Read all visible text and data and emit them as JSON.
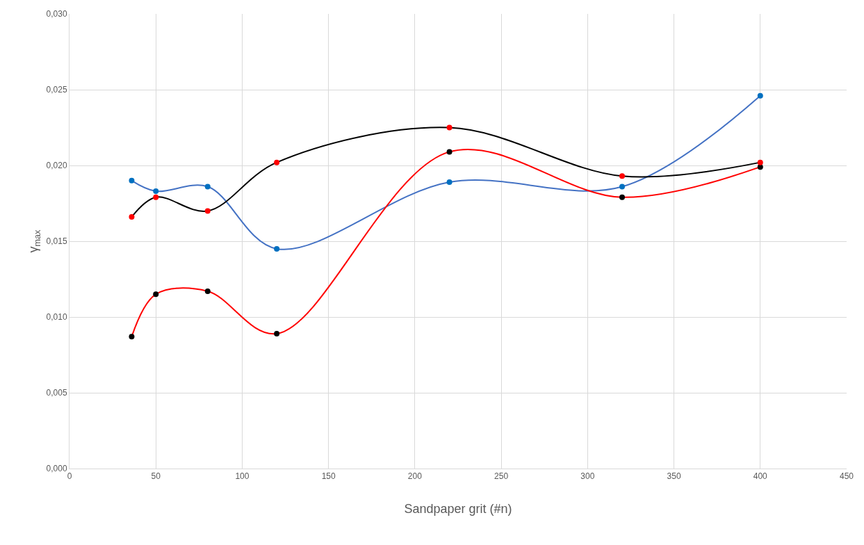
{
  "chart_data": {
    "type": "line",
    "xlabel": "Sandpaper grit (#n)",
    "ylabel": "γ$_{max}$",
    "x": [
      36,
      50,
      80,
      120,
      220,
      320,
      400
    ],
    "series": [
      {
        "color": "#4472c4",
        "colors": [
          "#0070c0",
          "#0070c0",
          "#0070c0",
          "#0070c0",
          "#0070c0",
          "#0070c0",
          "#0070c0"
        ],
        "values": [
          0.019,
          0.0183,
          0.0186,
          0.0145,
          0.0189,
          0.0186,
          0.0246
        ]
      },
      {
        "color": "#ff0000",
        "colors": [
          "#000000",
          "#000000",
          "#000000",
          "#000000",
          "#000000",
          "#000000",
          "#000000"
        ],
        "values": [
          0.0087,
          0.0115,
          0.0117,
          0.0089,
          0.0209,
          0.0179,
          0.0199
        ]
      },
      {
        "color": "#000000",
        "colors": [
          "#ff0000",
          "#ff0000",
          "#ff0000",
          "#ff0000",
          "#ff0000",
          "#ff0000",
          "#ff0000"
        ],
        "values": [
          0.0166,
          0.0179,
          0.017,
          0.0202,
          0.0225,
          0.0193,
          0.0202
        ]
      }
    ],
    "xlim": [
      0,
      450
    ],
    "xticks": [
      0,
      50,
      100,
      150,
      200,
      250,
      300,
      350,
      400,
      450
    ],
    "ylim": [
      0,
      0.03
    ],
    "yticks": [
      {
        "value": 0,
        "label": "0,000"
      },
      {
        "value": 0.005,
        "label": "0,005"
      },
      {
        "value": 0.01,
        "label": "0,010"
      },
      {
        "value": 0.015,
        "label": "0,015"
      },
      {
        "value": 0.02,
        "label": "0,020"
      },
      {
        "value": 0.025,
        "label": "0,025"
      },
      {
        "value": 0.03,
        "label": "0,030"
      }
    ],
    "grid": true,
    "marker": "circle",
    "line_style": "solid"
  }
}
